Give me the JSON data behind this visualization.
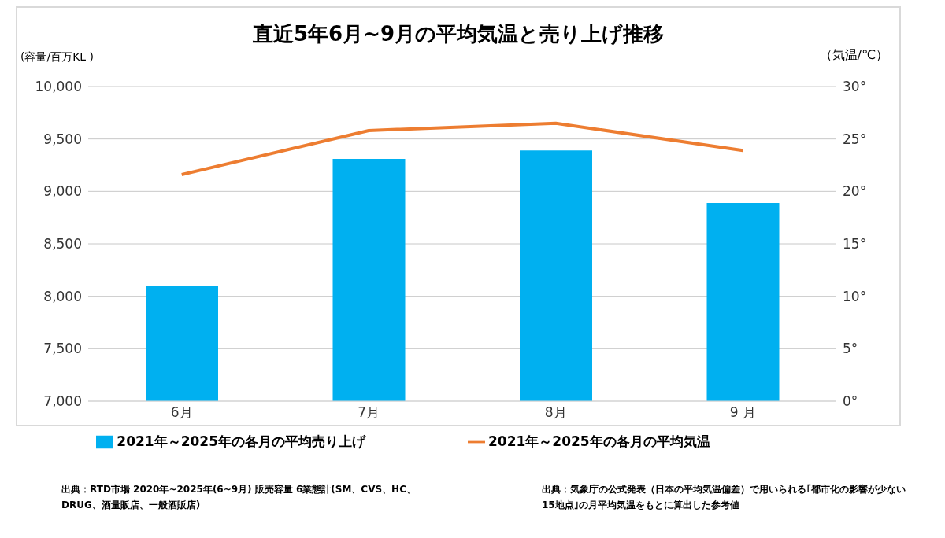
{
  "chart_data": {
    "type": "bar",
    "title": "直近5年6月~9月の平均気温と売り上げ推移",
    "ylabel": "(容量/百万KL )",
    "y2label": "（気温/℃）",
    "categories": [
      "6月",
      "7月",
      "8月",
      "9 月"
    ],
    "series": [
      {
        "name": "2021年～2025年の各月の平均売り上げ",
        "color": "#00b0f0",
        "values": [
          8100,
          9310,
          9390,
          8890
        ]
      },
      {
        "name": "2021年～2025年の各月の平均気温",
        "type": "line",
        "axis": "y2",
        "color": "#ed7d31",
        "values": [
          21.6,
          25.8,
          26.5,
          23.9
        ]
      }
    ],
    "ylim": [
      7000,
      10000
    ],
    "yticks": [
      {
        "value": 7000,
        "label": "7,000"
      },
      {
        "value": 7500,
        "label": "7,500"
      },
      {
        "value": 8000,
        "label": "8,000"
      },
      {
        "value": 8500,
        "label": "8,500"
      },
      {
        "value": 9000,
        "label": "9,000"
      },
      {
        "value": 9500,
        "label": "9,500"
      },
      {
        "value": 10000,
        "label": "10,000"
      }
    ],
    "y2lim": [
      0,
      30
    ],
    "y2ticks": [
      {
        "value": 0,
        "label": "0°"
      },
      {
        "value": 5,
        "label": "5°"
      },
      {
        "value": 10,
        "label": "10°"
      },
      {
        "value": 15,
        "label": "15°"
      },
      {
        "value": 20,
        "label": "20°"
      },
      {
        "value": 25,
        "label": "25°"
      },
      {
        "value": 30,
        "label": "30°"
      }
    ],
    "grid": "y",
    "legend": "bottom",
    "annotations": [
      "出典：RTD市場 2020年~2025年(6~9月) 販売容量 6業態計(SM、CVS、HC、DRUG、酒量販店、一般酒販店)",
      "出典：気象庁の公式発表（日本の平均気温偏差）で用いられる｢都市化の影響が少ない15地点｣の月平均気温をもとに算出した参考値"
    ]
  }
}
